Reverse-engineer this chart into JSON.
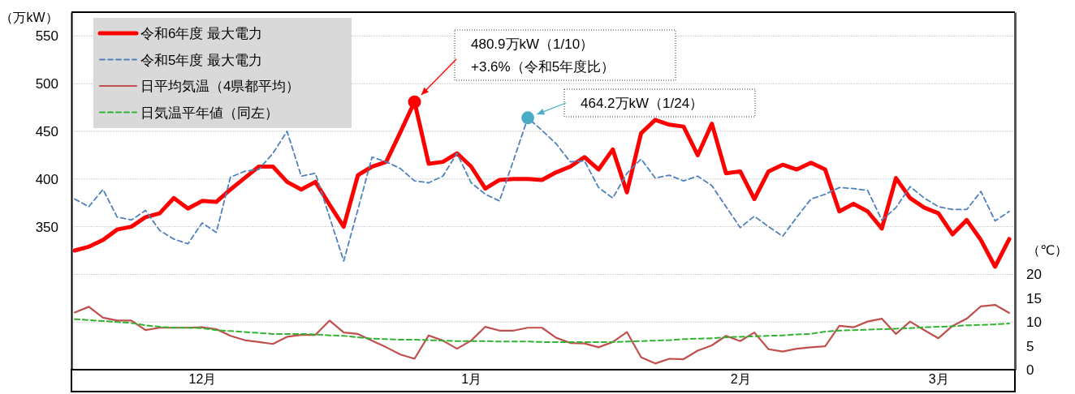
{
  "chart_data": {
    "type": "line",
    "ylabel": "（万kW）",
    "y2label": "（℃）",
    "categories": [
      null,
      null,
      null,
      null,
      null,
      null,
      null,
      null,
      null,
      "12月",
      null,
      null,
      null,
      null,
      null,
      null,
      null,
      null,
      null,
      null,
      null,
      null,
      null,
      null,
      null,
      null,
      null,
      null,
      "1月",
      null,
      null,
      null,
      null,
      null,
      null,
      null,
      null,
      null,
      null,
      null,
      null,
      null,
      null,
      null,
      null,
      null,
      null,
      "2月",
      null,
      null,
      null,
      null,
      null,
      null,
      null,
      null,
      null,
      null,
      null,
      null,
      null,
      "3月",
      null,
      null,
      null,
      null,
      null
    ],
    "ylim": [
      200,
      575
    ],
    "yticks": [
      {
        "value": 250,
        "label": null
      },
      {
        "value": 300,
        "label": null
      },
      350,
      400,
      450,
      500,
      550
    ],
    "y2lim": [
      0,
      75
    ],
    "y2ticks": [
      0,
      5,
      10,
      15,
      20
    ],
    "grid": "y",
    "legend": "top left",
    "series": [
      {
        "name": "令和6年度 最大電力",
        "line_style": "solid",
        "color": "#ff0000",
        "values": [
          325,
          329,
          336,
          347,
          350,
          360,
          364,
          380,
          369,
          377,
          376,
          389,
          401,
          413,
          413,
          397,
          389,
          397,
          373,
          350,
          404,
          413,
          418,
          449,
          480.9,
          416,
          418,
          427,
          413,
          390,
          399,
          400,
          400,
          399,
          407,
          413,
          423,
          410,
          431,
          386,
          448,
          462,
          457,
          455,
          425,
          458,
          406,
          408,
          379,
          408,
          415,
          410,
          417,
          410,
          366,
          374,
          366,
          348,
          401,
          380,
          370,
          364,
          342,
          357,
          336,
          308,
          337
        ]
      },
      {
        "name": "令和5年度 最大電力",
        "line_style": "dashed",
        "color": "#4f81bd",
        "values": [
          379,
          371,
          389,
          360,
          357,
          367,
          346,
          337,
          332,
          354,
          344,
          402,
          408,
          410,
          427,
          450,
          403,
          406,
          360,
          314,
          368,
          423,
          418,
          411,
          398,
          396,
          403,
          427,
          396,
          384,
          377,
          420,
          464.2,
          451,
          437,
          418,
          419,
          391,
          380,
          406,
          421,
          401,
          404,
          398,
          403,
          393,
          371,
          349,
          361,
          350,
          340,
          360,
          379,
          384,
          391,
          390,
          388,
          357,
          370,
          392,
          380,
          371,
          368,
          368,
          387,
          356,
          366
        ]
      },
      {
        "name": "日平均気温（4県都平均）",
        "line_style": "solid",
        "axis": "y2",
        "color": "#c0504d",
        "values": [
          12.0,
          13.2,
          10.9,
          10.3,
          10.3,
          8.3,
          8.8,
          8.8,
          8.8,
          8.9,
          8.5,
          7.1,
          6.2,
          5.8,
          5.4,
          6.9,
          7.3,
          7.3,
          10.3,
          7.8,
          7.5,
          6.1,
          4.7,
          3.2,
          2.3,
          7.2,
          6.1,
          4.4,
          6.1,
          9.0,
          8.2,
          8.2,
          8.8,
          8.8,
          6.7,
          5.6,
          5.5,
          4.7,
          5.8,
          7.9,
          2.6,
          1.3,
          2.3,
          2.2,
          4.0,
          5.1,
          7.1,
          6.0,
          7.8,
          4.3,
          3.8,
          4.4,
          4.7,
          4.9,
          9.2,
          8.9,
          10.1,
          10.7,
          7.5,
          10.1,
          8.3,
          6.6,
          9.2,
          10.7,
          13.3,
          13.6,
          11.9
        ]
      },
      {
        "name": "日気温平年値（同左）",
        "line_style": "dashed",
        "axis": "y2",
        "color": "#33b233",
        "values": [
          10.6,
          10.4,
          10.2,
          10.0,
          9.8,
          9.3,
          9.0,
          8.8,
          8.8,
          8.7,
          8.3,
          8.1,
          7.9,
          7.7,
          7.5,
          7.5,
          7.5,
          7.4,
          7.2,
          7.1,
          6.8,
          6.5,
          6.4,
          6.3,
          6.3,
          6.2,
          6.1,
          6.0,
          6.0,
          6.0,
          5.9,
          5.9,
          5.9,
          5.8,
          5.8,
          5.8,
          5.8,
          5.8,
          5.8,
          5.9,
          6.0,
          6.1,
          6.2,
          6.4,
          6.5,
          6.6,
          6.8,
          6.9,
          7.0,
          7.1,
          7.2,
          7.4,
          7.5,
          8.0,
          8.2,
          8.3,
          8.4,
          8.5,
          8.6,
          8.7,
          8.9,
          9.0,
          9.1,
          9.3,
          9.4,
          9.5,
          9.7
        ]
      },
      {
        "type": "scatter",
        "marker": "circle",
        "color": "#ff0000",
        "values": [
          null,
          null,
          null,
          null,
          null,
          null,
          null,
          null,
          null,
          null,
          null,
          null,
          null,
          null,
          null,
          null,
          null,
          null,
          null,
          null,
          null,
          null,
          null,
          null,
          480.9,
          null,
          null,
          null,
          null,
          null,
          null,
          null,
          null,
          null,
          null,
          null,
          null,
          null,
          null,
          null,
          null,
          null,
          null,
          null,
          null,
          null,
          null,
          null,
          null,
          null,
          null,
          null,
          null,
          null,
          null,
          null,
          null,
          null,
          null,
          null,
          null,
          null,
          null,
          null,
          null,
          null,
          null
        ]
      },
      {
        "type": "scatter",
        "marker": "circle",
        "color": "#4bacc6",
        "values": [
          null,
          null,
          null,
          null,
          null,
          null,
          null,
          null,
          null,
          null,
          null,
          null,
          null,
          null,
          null,
          null,
          null,
          null,
          null,
          null,
          null,
          null,
          null,
          null,
          null,
          null,
          null,
          null,
          null,
          null,
          null,
          null,
          464.2,
          null,
          null,
          null,
          null,
          null,
          null,
          null,
          null,
          null,
          null,
          null,
          null,
          null,
          null,
          null,
          null,
          null,
          null,
          null,
          null,
          null,
          null,
          null,
          null,
          null,
          null,
          null,
          null,
          null,
          null,
          null,
          null,
          null,
          null
        ]
      }
    ],
    "annotations": [
      "480.9万kW（1/10）\n+3.6%（令和5年度比）",
      "464.2万kW（1/24）"
    ]
  }
}
